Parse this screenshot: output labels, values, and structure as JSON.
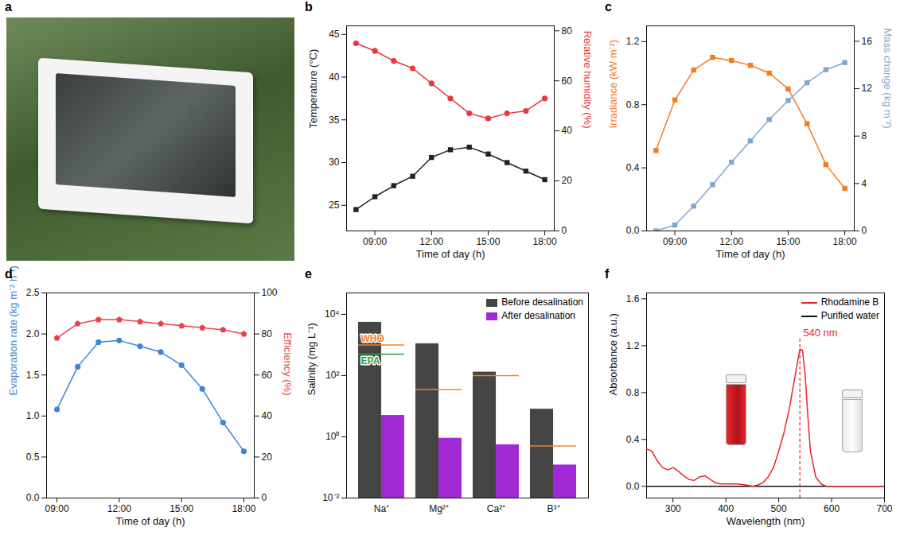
{
  "chart_data": [
    {
      "panel": "a",
      "type": "image"
    },
    {
      "panel": "b",
      "type": "line",
      "x": [
        8,
        9,
        10,
        11,
        12,
        13,
        14,
        15,
        16,
        17,
        18
      ],
      "xlabel": "Time of day (h)",
      "xlim": [
        7.5,
        18.5
      ],
      "xticks": [
        {
          "value": 9,
          "label": "09:00"
        },
        {
          "value": 12,
          "label": "12:00"
        },
        {
          "value": 15,
          "label": "15:00"
        },
        {
          "value": 18,
          "label": "18:00"
        }
      ],
      "ylabel": "Temperature (°C)",
      "ylim": [
        22,
        46
      ],
      "yticks": [
        25,
        30,
        35,
        40,
        45
      ],
      "y2label": "Relative humidity (%)",
      "y2lim": [
        0,
        82
      ],
      "y2ticks": [
        0,
        20,
        40,
        60,
        80
      ],
      "series": [
        {
          "color": "#222222",
          "marker": "square",
          "values": [
            24.5,
            26,
            27.3,
            28.4,
            30.6,
            31.5,
            31.8,
            31,
            30,
            29,
            28
          ]
        },
        {
          "axis": "y2",
          "color": "#e8383d",
          "marker": "circle",
          "values": [
            75,
            72,
            68,
            65,
            59,
            53,
            47,
            45,
            47,
            48,
            53
          ]
        }
      ]
    },
    {
      "panel": "c",
      "type": "line",
      "x": [
        8,
        9,
        10,
        11,
        12,
        13,
        14,
        15,
        16,
        17,
        18
      ],
      "xlabel": "Time of day (h)",
      "xlim": [
        7.5,
        18.5
      ],
      "xticks": [
        {
          "value": 9,
          "label": "09:00"
        },
        {
          "value": 12,
          "label": "12:00"
        },
        {
          "value": 15,
          "label": "15:00"
        },
        {
          "value": 18,
          "label": "18:00"
        }
      ],
      "ylabel": "Irradiance (kW m⁻²)",
      "ylim": [
        0,
        1.3
      ],
      "yticks": [
        {
          "value": 0,
          "label": "0.0"
        },
        {
          "value": 0.4,
          "label": "0.4"
        },
        {
          "value": 0.8,
          "label": "0.8"
        },
        {
          "value": 1.2,
          "label": "1.2"
        }
      ],
      "y2label": "Mass change (kg m⁻²)",
      "y2lim": [
        0,
        17.3
      ],
      "y2ticks": [
        0,
        4,
        8,
        12,
        16
      ],
      "series": [
        {
          "color": "#f47b20",
          "marker": "square",
          "values": [
            0.51,
            0.83,
            1.02,
            1.1,
            1.08,
            1.05,
            1.0,
            0.9,
            0.68,
            0.42,
            0.27
          ]
        },
        {
          "axis": "y2",
          "color": "#7fa7d0",
          "marker": "square",
          "values": [
            0,
            0.5,
            2.1,
            3.9,
            5.8,
            7.6,
            9.4,
            11.0,
            12.5,
            13.6,
            14.2
          ]
        }
      ]
    },
    {
      "panel": "d",
      "type": "line",
      "x": [
        9,
        10,
        11,
        12,
        13,
        14,
        15,
        16,
        17,
        18
      ],
      "xlabel": "Time of day (h)",
      "xlim": [
        8.5,
        18.5
      ],
      "xticks": [
        {
          "value": 9,
          "label": "09:00"
        },
        {
          "value": 12,
          "label": "12:00"
        },
        {
          "value": 15,
          "label": "15:00"
        },
        {
          "value": 18,
          "label": "18:00"
        }
      ],
      "ylabel": "Evaporation rate (kg m⁻² h⁻¹)",
      "ylim": [
        0,
        2.5
      ],
      "yticks": [
        {
          "value": 0,
          "label": "0.0"
        },
        {
          "value": 0.5,
          "label": "0.5"
        },
        {
          "value": 1,
          "label": "1.0"
        },
        {
          "value": 1.5,
          "label": "1.5"
        },
        {
          "value": 2,
          "label": "2.0"
        },
        {
          "value": 2.5,
          "label": "2.5"
        }
      ],
      "y2label": "Efficiency (%)",
      "y2lim": [
        0,
        100
      ],
      "y2ticks": [
        0,
        20,
        40,
        60,
        80,
        100
      ],
      "series": [
        {
          "color": "#3d85d8",
          "marker": "circle",
          "values": [
            1.08,
            1.6,
            1.9,
            1.92,
            1.85,
            1.78,
            1.62,
            1.33,
            0.92,
            0.57
          ]
        },
        {
          "axis": "y2",
          "color": "#e8454a",
          "marker": "pentagon",
          "values": [
            78,
            85,
            87,
            87,
            86,
            85,
            84,
            83,
            82,
            80
          ]
        }
      ]
    },
    {
      "panel": "e",
      "type": "bar",
      "log": "y",
      "legend": "top-right",
      "categories": [
        "Na⁺",
        "Mg²⁺",
        "Ca²⁺",
        "B³⁺"
      ],
      "ylabel": "Salinity (mg L⁻¹)",
      "ylim": [
        0.01,
        50000
      ],
      "yticks": [
        {
          "value": 0.01,
          "label": "10⁻²"
        },
        {
          "value": 1,
          "label": "10⁰"
        },
        {
          "value": 100,
          "label": "10²"
        },
        {
          "value": 10000,
          "label": "10⁴"
        }
      ],
      "series": [
        {
          "name": "Before desalination",
          "color": "#454545",
          "values": [
            5500,
            1100,
            130,
            8
          ]
        },
        {
          "name": "After desalination",
          "color": "#a129d6",
          "values": [
            5,
            0.9,
            0.55,
            0.12
          ]
        }
      ],
      "reference_lines": [
        {
          "name": "WHO",
          "color": "#f5821f",
          "values": [
            1000,
            35,
            100,
            0.5
          ]
        },
        {
          "name": "EPA",
          "color": "#22a63a",
          "values": [
            500,
            null,
            null,
            null
          ]
        }
      ]
    },
    {
      "panel": "f",
      "type": "line",
      "legend": "top-right",
      "x": [
        250,
        260,
        270,
        280,
        290,
        300,
        310,
        320,
        330,
        340,
        350,
        360,
        370,
        380,
        390,
        400,
        420,
        440,
        450,
        460,
        470,
        480,
        490,
        500,
        510,
        520,
        530,
        540,
        545,
        550,
        555,
        560,
        570,
        580,
        590,
        600,
        650,
        700
      ],
      "xlabel": "Wavelength (nm)",
      "xlim": [
        250,
        700
      ],
      "xticks": [
        300,
        400,
        500,
        600,
        700
      ],
      "ylabel": "Absorbance (a.u.)",
      "ylim": [
        -0.1,
        1.65
      ],
      "yticks": [
        {
          "value": 0,
          "label": "0.0"
        },
        {
          "value": 0.4,
          "label": "0.4"
        },
        {
          "value": 0.8,
          "label": "0.8"
        },
        {
          "value": 1.2,
          "label": "1.2"
        },
        {
          "value": 1.6,
          "label": "1.6"
        }
      ],
      "annotations": [
        {
          "text": "540 nm",
          "x": 540,
          "y": 1.28
        }
      ],
      "series": [
        {
          "name": "Purified water",
          "color": "#111111",
          "values": [
            0,
            0,
            0,
            0,
            0,
            0,
            0,
            0,
            0,
            0,
            0,
            0,
            0,
            0,
            0,
            0,
            0,
            0,
            0,
            0,
            0,
            0,
            0,
            0,
            0,
            0,
            0,
            0,
            0,
            0,
            0,
            0,
            0,
            0,
            0,
            0,
            0,
            0
          ]
        },
        {
          "name": "Rhodamine B",
          "color": "#e8262b",
          "values": [
            0.32,
            0.3,
            0.22,
            0.16,
            0.14,
            0.16,
            0.13,
            0.09,
            0.06,
            0.05,
            0.08,
            0.09,
            0.06,
            0.03,
            0.02,
            0.02,
            0.02,
            0.01,
            0,
            0.01,
            0.03,
            0.08,
            0.16,
            0.3,
            0.46,
            0.66,
            0.92,
            1.17,
            1.16,
            0.95,
            0.6,
            0.3,
            0.08,
            0.02,
            0,
            0,
            0,
            0
          ]
        }
      ]
    }
  ]
}
